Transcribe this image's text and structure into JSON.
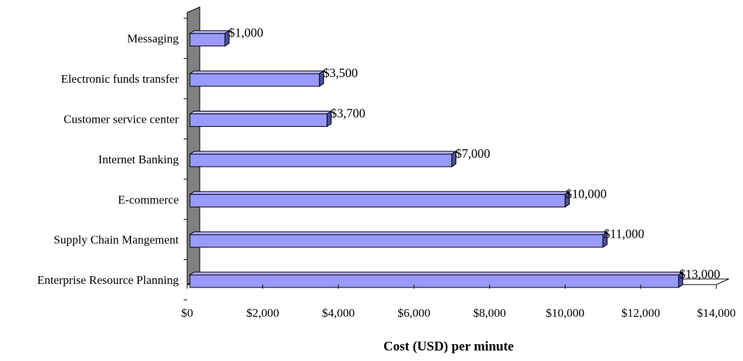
{
  "chart_data": {
    "type": "bar",
    "orientation": "horizontal",
    "three_d": true,
    "title": "",
    "xlabel": "Cost (USD) per minute",
    "ylabel": "",
    "categories": [
      "Messaging",
      "Electronic funds transfer",
      "Customer service center",
      "Internet Banking",
      "E-commerce",
      "Supply Chain Mangement",
      "Enterprise Resource Planning"
    ],
    "values": [
      1000,
      3500,
      3700,
      7000,
      10000,
      11000,
      13000
    ],
    "value_labels": [
      "$1,000",
      "$3,500",
      "$3,700",
      "$7,000",
      "$10,000",
      "$11,000",
      "$13,000"
    ],
    "xlim": [
      0,
      14000
    ],
    "xticks": [
      0,
      2000,
      4000,
      6000,
      8000,
      10000,
      12000,
      14000
    ],
    "xtick_labels": [
      "$0",
      "$2,000",
      "$4,000",
      "$6,000",
      "$8,000",
      "$10,000",
      "$12,000",
      "$14,000"
    ],
    "grid": false,
    "legend": "none",
    "colors": {
      "bar_front": "#9999ff",
      "bar_top": "#b3b3ff",
      "bar_side": "#4d4d99",
      "wall": "#808080",
      "outline": "#000000"
    }
  }
}
